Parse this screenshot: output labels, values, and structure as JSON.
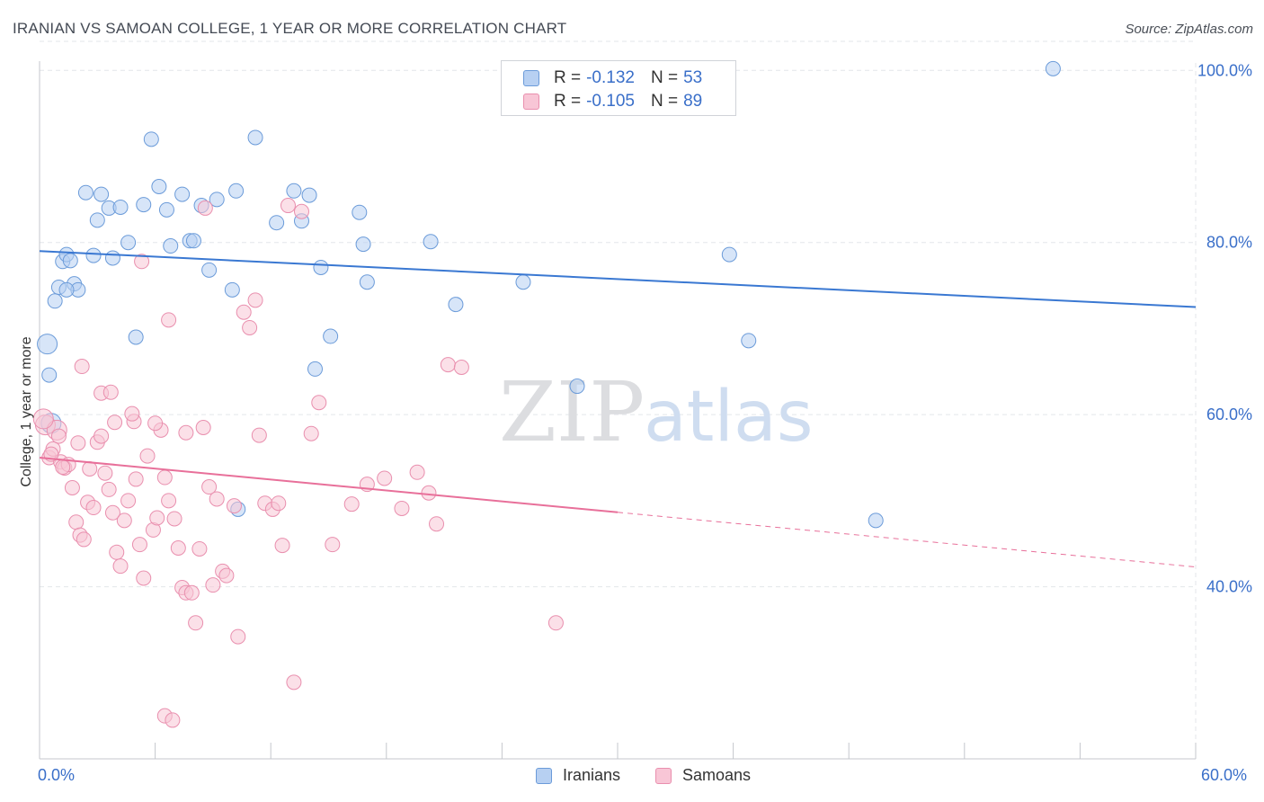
{
  "header": {
    "title": "IRANIAN VS SAMOAN COLLEGE, 1 YEAR OR MORE CORRELATION CHART",
    "source": "Source: ZipAtlas.com"
  },
  "legend_top": {
    "rows": [
      {
        "r_label": "R =",
        "r_value": "-0.132",
        "n_label": "N =",
        "n_value": "53"
      },
      {
        "r_label": "R =",
        "r_value": "-0.105",
        "n_label": "N =",
        "n_value": "89"
      }
    ]
  },
  "legend_bottom": {
    "items": [
      "Iranians",
      "Samoans"
    ]
  },
  "watermark": {
    "part1": "ZIP",
    "part2": "atlas"
  },
  "colors": {
    "iranians_fill": "#b7d0f2",
    "iranians_stroke": "#6b9bd9",
    "iranians_line": "#3a78d2",
    "samoans_fill": "#f8c6d6",
    "samoans_stroke": "#e98fae",
    "samoans_line": "#e8709a",
    "axis_text": "#3a6fc9",
    "grid": "#e3e6ea"
  },
  "chart_data": {
    "type": "scatter",
    "title": "IRANIAN VS SAMOAN COLLEGE, 1 YEAR OR MORE CORRELATION CHART",
    "xlabel": "",
    "ylabel": "College, 1 year or more",
    "xlim": [
      0,
      60
    ],
    "ylim": [
      20,
      104
    ],
    "x_tick_labels": [
      "0.0%",
      "60.0%"
    ],
    "y_ticks": [
      40,
      60,
      80,
      100
    ],
    "y_tick_labels": [
      "40.0%",
      "60.0%",
      "80.0%",
      "100.0%"
    ],
    "grid": true,
    "legend_position": "top-center",
    "series": [
      {
        "name": "Iranians",
        "r": -0.132,
        "n": 53,
        "trend": {
          "x": [
            0,
            60
          ],
          "y": [
            79.0,
            72.5
          ],
          "dashed_from": null
        },
        "points": [
          [
            0.4,
            68.2
          ],
          [
            0.6,
            59.0
          ],
          [
            0.8,
            73.2
          ],
          [
            1.0,
            74.8
          ],
          [
            1.2,
            77.8
          ],
          [
            1.4,
            78.6
          ],
          [
            1.6,
            77.9
          ],
          [
            1.8,
            75.2
          ],
          [
            2.0,
            74.5
          ],
          [
            2.4,
            85.8
          ],
          [
            2.8,
            78.5
          ],
          [
            3.0,
            82.6
          ],
          [
            3.2,
            85.6
          ],
          [
            3.6,
            84.0
          ],
          [
            3.8,
            78.2
          ],
          [
            4.2,
            84.1
          ],
          [
            4.6,
            80.0
          ],
          [
            5.0,
            69.0
          ],
          [
            5.4,
            84.4
          ],
          [
            5.8,
            92.0
          ],
          [
            6.2,
            86.5
          ],
          [
            6.6,
            83.8
          ],
          [
            6.8,
            79.6
          ],
          [
            7.4,
            85.6
          ],
          [
            7.8,
            80.2
          ],
          [
            8.0,
            80.2
          ],
          [
            8.4,
            84.3
          ],
          [
            8.8,
            76.8
          ],
          [
            9.2,
            85.0
          ],
          [
            10.0,
            74.5
          ],
          [
            10.2,
            86.0
          ],
          [
            11.2,
            92.2
          ],
          [
            12.3,
            82.3
          ],
          [
            13.2,
            86.0
          ],
          [
            13.6,
            82.5
          ],
          [
            14.0,
            85.5
          ],
          [
            14.3,
            65.3
          ],
          [
            14.6,
            77.1
          ],
          [
            15.1,
            69.1
          ],
          [
            16.6,
            83.5
          ],
          [
            16.8,
            79.8
          ],
          [
            17.0,
            75.4
          ],
          [
            20.3,
            80.1
          ],
          [
            21.6,
            72.8
          ],
          [
            25.1,
            75.4
          ],
          [
            27.9,
            63.3
          ],
          [
            35.8,
            78.6
          ],
          [
            36.8,
            68.6
          ],
          [
            43.4,
            47.7
          ],
          [
            52.6,
            100.2
          ],
          [
            10.3,
            49.0
          ],
          [
            1.4,
            74.5
          ],
          [
            0.5,
            64.6
          ]
        ]
      },
      {
        "name": "Samoans",
        "r": -0.105,
        "n": 89,
        "trend": {
          "x": [
            0,
            60
          ],
          "y": [
            55.0,
            42.3
          ],
          "dashed_from": 30
        },
        "points": [
          [
            0.3,
            58.8
          ],
          [
            0.5,
            55.0
          ],
          [
            0.7,
            56.0
          ],
          [
            0.9,
            58.2
          ],
          [
            1.0,
            57.5
          ],
          [
            1.1,
            54.5
          ],
          [
            1.3,
            53.8
          ],
          [
            1.5,
            54.2
          ],
          [
            1.7,
            51.5
          ],
          [
            1.9,
            47.5
          ],
          [
            2.1,
            46.0
          ],
          [
            2.3,
            45.5
          ],
          [
            2.5,
            49.8
          ],
          [
            2.6,
            53.7
          ],
          [
            2.8,
            49.2
          ],
          [
            3.0,
            56.8
          ],
          [
            3.2,
            57.5
          ],
          [
            3.4,
            53.2
          ],
          [
            3.6,
            51.3
          ],
          [
            3.8,
            48.6
          ],
          [
            4.0,
            44.0
          ],
          [
            4.2,
            42.4
          ],
          [
            4.4,
            47.7
          ],
          [
            4.6,
            50.0
          ],
          [
            4.9,
            59.2
          ],
          [
            5.0,
            52.5
          ],
          [
            5.2,
            44.9
          ],
          [
            5.4,
            41.0
          ],
          [
            5.6,
            55.2
          ],
          [
            5.9,
            46.6
          ],
          [
            6.1,
            48.0
          ],
          [
            6.3,
            58.2
          ],
          [
            6.5,
            52.7
          ],
          [
            6.7,
            50.0
          ],
          [
            7.0,
            47.9
          ],
          [
            7.2,
            44.5
          ],
          [
            7.4,
            39.9
          ],
          [
            7.6,
            39.3
          ],
          [
            7.9,
            39.3
          ],
          [
            8.1,
            35.8
          ],
          [
            8.3,
            44.4
          ],
          [
            8.5,
            58.5
          ],
          [
            8.8,
            51.6
          ],
          [
            9.0,
            40.2
          ],
          [
            9.2,
            50.2
          ],
          [
            9.5,
            41.8
          ],
          [
            9.7,
            41.3
          ],
          [
            10.1,
            49.4
          ],
          [
            10.3,
            34.2
          ],
          [
            10.6,
            71.9
          ],
          [
            10.9,
            70.1
          ],
          [
            11.2,
            73.3
          ],
          [
            11.4,
            57.6
          ],
          [
            11.7,
            49.7
          ],
          [
            12.1,
            49.0
          ],
          [
            12.4,
            49.7
          ],
          [
            12.6,
            44.8
          ],
          [
            12.9,
            84.3
          ],
          [
            13.2,
            28.9
          ],
          [
            13.6,
            83.6
          ],
          [
            14.1,
            57.8
          ],
          [
            14.5,
            61.4
          ],
          [
            15.2,
            44.9
          ],
          [
            16.2,
            49.6
          ],
          [
            17.0,
            51.9
          ],
          [
            17.9,
            52.6
          ],
          [
            18.8,
            49.1
          ],
          [
            19.6,
            53.3
          ],
          [
            20.2,
            50.9
          ],
          [
            20.6,
            47.3
          ],
          [
            21.2,
            65.8
          ],
          [
            21.9,
            65.5
          ],
          [
            26.8,
            35.8
          ],
          [
            6.5,
            25.0
          ],
          [
            6.9,
            24.5
          ],
          [
            5.3,
            77.8
          ],
          [
            6.7,
            71.0
          ],
          [
            3.2,
            62.5
          ],
          [
            3.7,
            62.6
          ],
          [
            2.2,
            65.6
          ],
          [
            0.2,
            59.5
          ],
          [
            0.6,
            55.4
          ],
          [
            1.2,
            53.9
          ],
          [
            2.0,
            56.7
          ],
          [
            3.9,
            59.1
          ],
          [
            4.8,
            60.1
          ],
          [
            6.0,
            59.0
          ],
          [
            7.6,
            57.9
          ],
          [
            8.6,
            84.0
          ]
        ]
      }
    ]
  }
}
